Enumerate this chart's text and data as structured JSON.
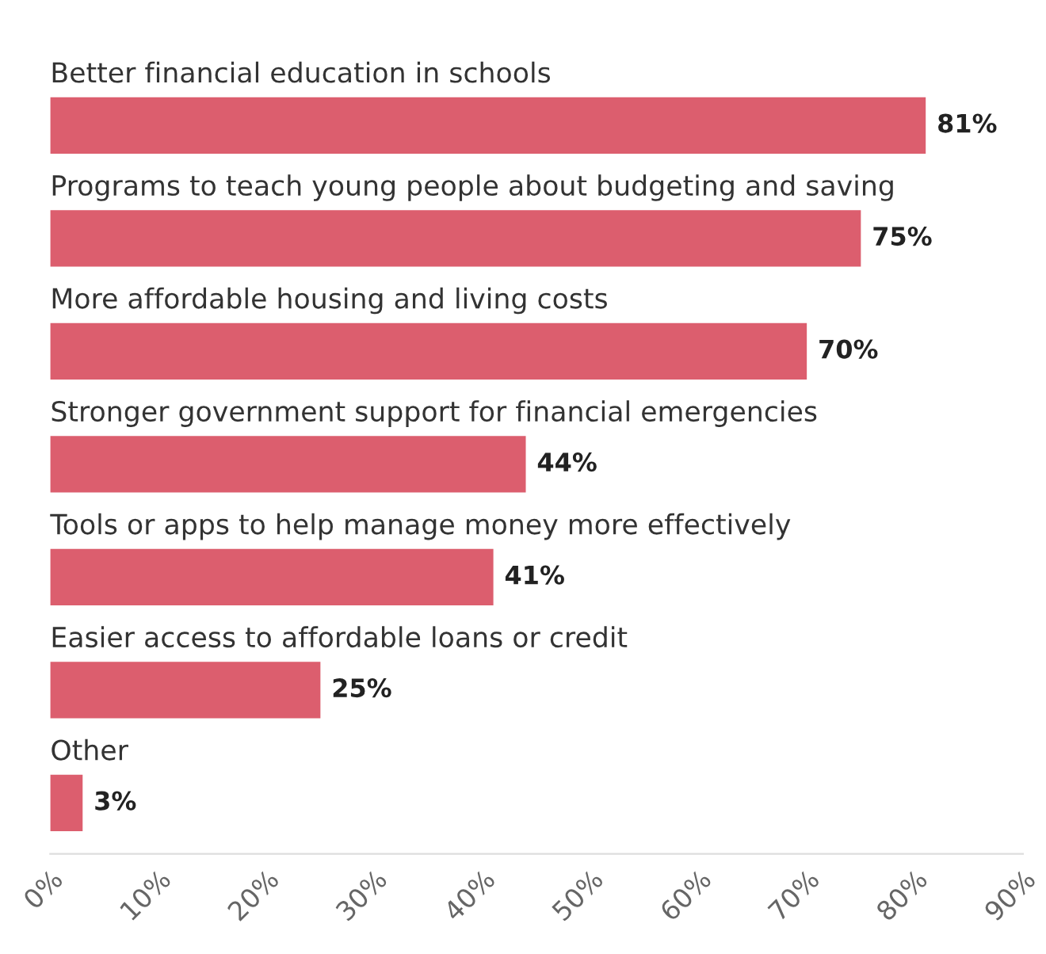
{
  "chart_data": {
    "type": "bar",
    "orientation": "horizontal",
    "categories": [
      "Better financial education in schools",
      "Programs to teach young people about budgeting and saving",
      "More affordable housing and living costs",
      "Stronger government support for financial emergencies",
      "Tools or apps to help manage money more effectively",
      "Easier access to affordable loans or credit",
      "Other"
    ],
    "values": [
      81,
      75,
      70,
      44,
      41,
      25,
      3
    ],
    "value_labels": [
      "81%",
      "75%",
      "70%",
      "44%",
      "41%",
      "25%",
      "3%"
    ],
    "color": "#dc5e6e",
    "xlim": [
      0,
      90
    ],
    "xticks": [
      {
        "value": 0,
        "label": "0%"
      },
      {
        "value": 10,
        "label": "10%"
      },
      {
        "value": 20,
        "label": "20%"
      },
      {
        "value": 30,
        "label": "30%"
      },
      {
        "value": 40,
        "label": "40%"
      },
      {
        "value": 50,
        "label": "50%"
      },
      {
        "value": 60,
        "label": "60%"
      },
      {
        "value": 70,
        "label": "70%"
      },
      {
        "value": 80,
        "label": "80%"
      },
      {
        "value": 90,
        "label": "90%"
      }
    ],
    "grid": false,
    "legend": false
  }
}
